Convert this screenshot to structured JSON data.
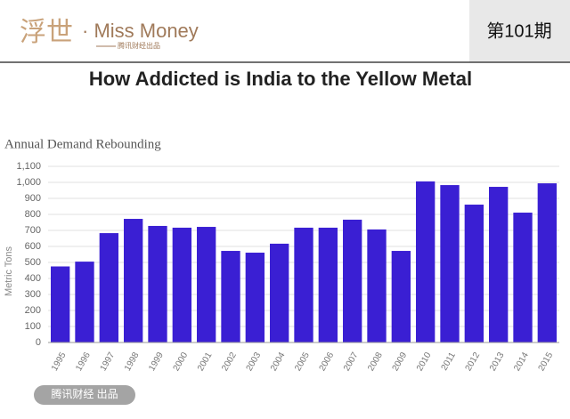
{
  "header": {
    "logo": "浮世",
    "brand": "· Miss Money",
    "tagline": "腾讯财经出品",
    "issue": "第101期"
  },
  "footer": {
    "credit": "腾讯财经 出品"
  },
  "chart_data": {
    "type": "bar",
    "title": "How Addicted is India to the Yellow Metal",
    "subtitle": "Annual Demand Rebounding",
    "y_label": "Metric Tons",
    "categories": [
      "1995",
      "1996",
      "1997",
      "1998",
      "1999",
      "2000",
      "2001",
      "2002",
      "2003",
      "2004",
      "2005",
      "2006",
      "2007",
      "2008",
      "2009",
      "2010",
      "2011",
      "2012",
      "2013",
      "2014",
      "2015"
    ],
    "values": [
      475,
      505,
      683,
      772,
      728,
      717,
      722,
      572,
      561,
      617,
      717,
      717,
      767,
      706,
      572,
      1006,
      983,
      861,
      972,
      811,
      994
    ],
    "color": "#3a1fd3",
    "ylim": [
      0,
      1100
    ],
    "yticks": [
      0,
      100,
      200,
      300,
      400,
      500,
      600,
      700,
      800,
      900,
      {
        "value": 1000,
        "label": "1,000"
      },
      {
        "value": 1100,
        "label": "1,100"
      }
    ],
    "grid": true
  }
}
